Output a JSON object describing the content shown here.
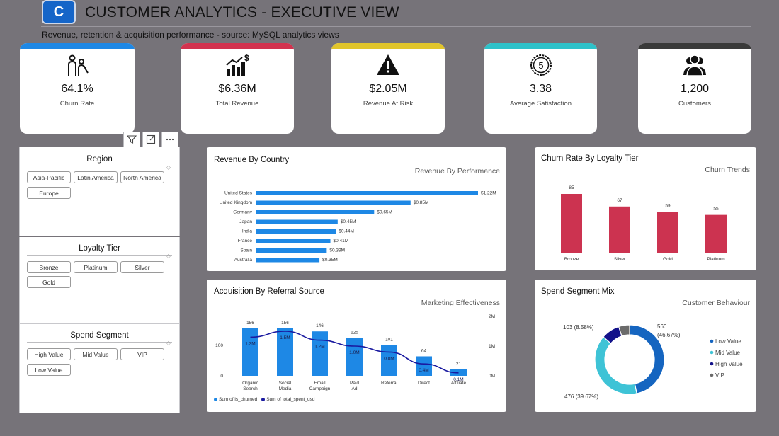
{
  "header": {
    "logo_letter": "C",
    "title": "CUSTOMER ANALYTICS - EXECUTIVE VIEW",
    "subtitle": "Revenue, retention & acquisition performance - source: MySQL analytics views"
  },
  "kpis": [
    {
      "value": "64.1%",
      "label": "Churn Rate",
      "color": "#1e88e5",
      "icon": "churn-people-icon"
    },
    {
      "value": "$6.36M",
      "label": "Total Revenue",
      "color": "#d2334f",
      "icon": "revenue-chart-icon"
    },
    {
      "value": "$2.05M",
      "label": "Revenue At Risk",
      "color": "#e1c52b",
      "icon": "warning-icon"
    },
    {
      "value": "3.38",
      "label": "Average Satisfaction",
      "color": "#2ec2c9",
      "icon": "rating-badge-icon",
      "badge": "5"
    },
    {
      "value": "1,200",
      "label": "Customers",
      "color": "#3a3a3a",
      "icon": "customers-icon"
    }
  ],
  "slicers": {
    "region": {
      "title": "Region",
      "items": [
        "Asia-Pacific",
        "Latin America",
        "North America",
        "Europe"
      ]
    },
    "loyalty": {
      "title": "Loyalty Tier",
      "items": [
        "Bronze",
        "Platinum",
        "Silver",
        "Gold"
      ]
    },
    "spend": {
      "title": "Spend Segment",
      "items": [
        "High Value",
        "Mid Value",
        "VIP",
        "Low Value"
      ]
    }
  },
  "revenue_by_country": {
    "title": "Revenue By Country",
    "subtitle": "Revenue By Performance",
    "color": "#1e88e5"
  },
  "churn_by_tier": {
    "title": "Churn Rate By Loyalty Tier",
    "subtitle": "Churn Trends",
    "color": "#cc3350"
  },
  "acquisition": {
    "title": "Acquisition By Referral Source",
    "subtitle": "Marketing Effectiveness",
    "legend": [
      "Sum of is_churned",
      "Sum of total_spent_usd"
    ],
    "bar_color": "#1e88e5",
    "line_color": "#1a1aa0"
  },
  "spend_mix": {
    "title": "Spend Segment Mix",
    "subtitle": "Customer Behaviour"
  },
  "chart_data": [
    {
      "type": "bar",
      "orientation": "horizontal",
      "title": "Revenue By Country",
      "categories": [
        "United States",
        "United Kingdom",
        "Germany",
        "Japan",
        "India",
        "France",
        "Spain",
        "Australia"
      ],
      "values": [
        1.22,
        0.85,
        0.65,
        0.45,
        0.44,
        0.41,
        0.39,
        0.35
      ],
      "labels": [
        "$1.22M",
        "$0.85M",
        "$0.65M",
        "$0.45M",
        "$0.44M",
        "$0.41M",
        "$0.39M",
        "$0.35M"
      ]
    },
    {
      "type": "bar",
      "title": "Churn Rate By Loyalty Tier",
      "categories": [
        "Bronze",
        "Silver",
        "Gold",
        "Platinum"
      ],
      "values": [
        85,
        67,
        59,
        55
      ]
    },
    {
      "type": "bar",
      "title": "Acquisition By Referral Source",
      "categories": [
        "Organic Search",
        "Social Media",
        "Email Campaign",
        "Paid Ad",
        "Referral",
        "Direct",
        "Affiliate"
      ],
      "series": [
        {
          "name": "Sum of is_churned",
          "type": "bar",
          "values": [
            156,
            156,
            146,
            125,
            101,
            64,
            21
          ]
        },
        {
          "name": "Sum of total_spent_usd",
          "type": "line",
          "values": [
            1.3,
            1.5,
            1.2,
            1.0,
            0.8,
            0.4,
            0.1
          ],
          "labels": [
            "1.3M",
            "1.5M",
            "1.2M",
            "1.0M",
            "0.8M",
            "0.4M",
            "0.1M"
          ]
        }
      ],
      "y_left_ticks": [
        "0",
        "100"
      ],
      "y_right_ticks": [
        "0M",
        "1M",
        "2M"
      ]
    },
    {
      "type": "pie",
      "title": "Spend Segment Mix",
      "categories": [
        "Low Value",
        "Mid Value",
        "High Value",
        "VIP"
      ],
      "values": [
        560,
        476,
        103,
        61
      ],
      "labels": [
        "560\n(46.67%)",
        "476 (39.67%)",
        "103 (8.58%)",
        ""
      ],
      "colors": [
        "#1565c0",
        "#3ec3d6",
        "#13128a",
        "#6b6b6b"
      ]
    }
  ]
}
